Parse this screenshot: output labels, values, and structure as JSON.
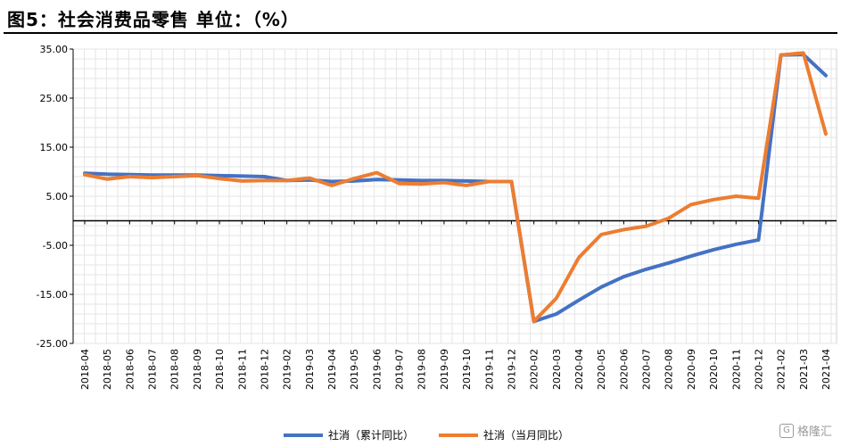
{
  "header": {
    "title": "图5：社会消费品零售   单位：（%）"
  },
  "watermark": {
    "icon": "gelonghui-logo-icon",
    "text": "格隆汇"
  },
  "chart_data": {
    "type": "line",
    "title": "",
    "xlabel": "",
    "ylabel": "",
    "ylim": [
      -25,
      35
    ],
    "y_ticks": [
      "35.00",
      "25.00",
      "15.00",
      "5.00",
      "-5.00",
      "-15.00",
      "-25.00"
    ],
    "grid": true,
    "legend_position": "bottom",
    "categories": [
      "2018-04",
      "2018-05",
      "2018-06",
      "2018-07",
      "2018-08",
      "2018-09",
      "2018-10",
      "2018-11",
      "2018-12",
      "2019-02",
      "2019-03",
      "2019-04",
      "2019-05",
      "2019-06",
      "2019-07",
      "2019-08",
      "2019-09",
      "2019-10",
      "2019-11",
      "2019-12",
      "2020-02",
      "2020-03",
      "2020-04",
      "2020-05",
      "2020-06",
      "2020-07",
      "2020-08",
      "2020-09",
      "2020-10",
      "2020-11",
      "2020-12",
      "2021-02",
      "2021-03",
      "2021-04"
    ],
    "series": [
      {
        "name": "社消（累计同比）",
        "color": "#4472C4",
        "values": [
          9.7,
          9.5,
          9.4,
          9.3,
          9.3,
          9.3,
          9.2,
          9.1,
          9.0,
          8.2,
          8.3,
          8.0,
          8.1,
          8.4,
          8.3,
          8.2,
          8.2,
          8.1,
          8.0,
          8.0,
          -20.5,
          -19.0,
          -16.2,
          -13.5,
          -11.4,
          -9.9,
          -8.6,
          -7.2,
          -5.9,
          -4.8,
          -3.9,
          33.8,
          33.9,
          29.6
        ]
      },
      {
        "name": "社消（当月同比）",
        "color": "#ED7D31",
        "values": [
          9.4,
          8.5,
          9.0,
          8.8,
          9.0,
          9.2,
          8.6,
          8.1,
          8.2,
          8.2,
          8.7,
          7.2,
          8.6,
          9.8,
          7.6,
          7.5,
          7.8,
          7.2,
          8.0,
          8.0,
          -20.5,
          -15.8,
          -7.5,
          -2.8,
          -1.8,
          -1.1,
          0.5,
          3.3,
          4.3,
          5.0,
          4.6,
          33.8,
          34.2,
          17.7
        ]
      }
    ]
  }
}
